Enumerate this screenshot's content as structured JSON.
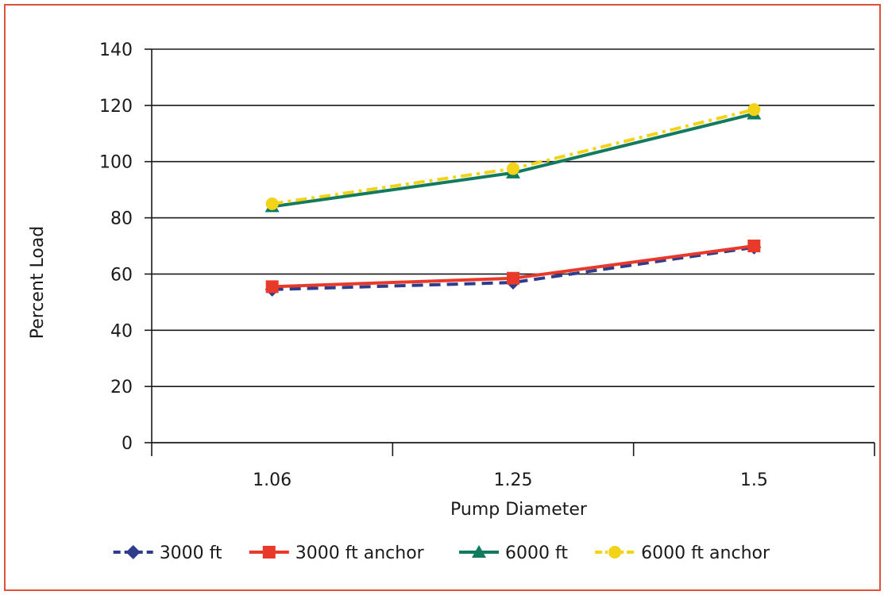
{
  "chart_data": {
    "type": "line",
    "categories": [
      "1.06",
      "1.25",
      "1.5"
    ],
    "xlabel": "Pump Diameter",
    "ylabel": "Percent Load",
    "ylim": [
      0,
      140
    ],
    "yticks": [
      "0",
      "20",
      "40",
      "60",
      "80",
      "100",
      "120",
      "140"
    ],
    "grid": true,
    "legend_position": "bottom",
    "series": [
      {
        "name": "3000 ft",
        "values": [
          54.5,
          57,
          69.5
        ],
        "color": "#2e3c8c",
        "marker": "diamond",
        "line_style": "dashed"
      },
      {
        "name": "3000 ft anchor",
        "values": [
          55.5,
          58.5,
          70
        ],
        "color": "#e8392b",
        "marker": "square",
        "line_style": "solid"
      },
      {
        "name": "6000 ft",
        "values": [
          84,
          96,
          117
        ],
        "color": "#127a5e",
        "marker": "triangle",
        "line_style": "solid"
      },
      {
        "name": "6000 ft anchor",
        "values": [
          85,
          97.5,
          118.5
        ],
        "color": "#f2d318",
        "marker": "circle",
        "line_style": "dash-dot"
      }
    ]
  }
}
